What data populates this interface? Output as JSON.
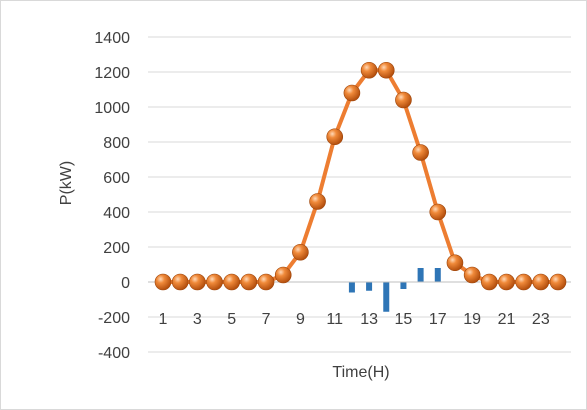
{
  "chart_data": {
    "type": "line",
    "title": "",
    "xlabel": "Time(H)",
    "ylabel": "P(kW)",
    "ylim": [
      -400,
      1400
    ],
    "yticks": [
      -400,
      -200,
      0,
      200,
      400,
      600,
      800,
      1000,
      1200,
      1400
    ],
    "x": [
      1,
      2,
      3,
      4,
      5,
      6,
      7,
      8,
      9,
      10,
      11,
      12,
      13,
      14,
      15,
      16,
      17,
      18,
      19,
      20,
      21,
      22,
      23,
      24
    ],
    "xtick_labels": [
      "1",
      "3",
      "5",
      "7",
      "9",
      "11",
      "13",
      "15",
      "17",
      "19",
      "21",
      "23"
    ],
    "grid": "horizontal",
    "legend": "none",
    "series": [
      {
        "type": "line",
        "color": "#ed7d31",
        "marker": "orange-sphere",
        "values": [
          0,
          0,
          0,
          0,
          0,
          0,
          0,
          40,
          170,
          460,
          830,
          1080,
          1210,
          1210,
          1040,
          740,
          400,
          110,
          40,
          0,
          0,
          0,
          0,
          0
        ]
      },
      {
        "type": "bar",
        "color": "#2e75b6",
        "values": [
          0,
          0,
          0,
          0,
          0,
          0,
          0,
          0,
          0,
          0,
          0,
          -60,
          -50,
          -170,
          -40,
          80,
          80,
          0,
          0,
          0,
          0,
          0,
          0,
          0
        ]
      }
    ]
  }
}
